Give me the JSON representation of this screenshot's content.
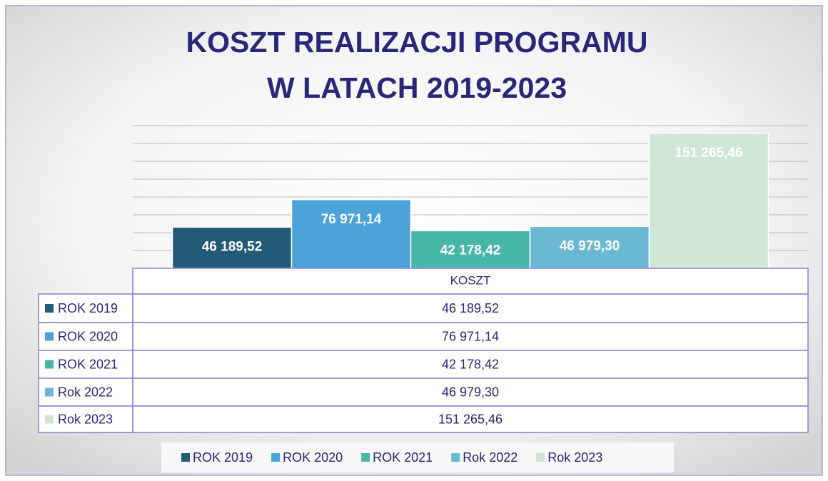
{
  "chart_data": {
    "type": "bar",
    "title": [
      "KOSZT REALIZACJI PROGRAMU",
      "W LATACH 2019-2023"
    ],
    "categories": [
      "KOSZT"
    ],
    "series": [
      {
        "name": "ROK 2019",
        "color": "#235a78",
        "values": [
          46189.52
        ],
        "value_labels": [
          "46 189,52"
        ]
      },
      {
        "name": "ROK 2020",
        "color": "#4ba3da",
        "values": [
          76971.14
        ],
        "value_labels": [
          "76 971,14"
        ]
      },
      {
        "name": "ROK 2021",
        "color": "#47b6a6",
        "values": [
          42178.42
        ],
        "value_labels": [
          "42 178,42"
        ]
      },
      {
        "name": "Rok 2022",
        "color": "#6ab8d2",
        "values": [
          46979.3
        ],
        "value_labels": [
          "46 979,30"
        ]
      },
      {
        "name": "Rok 2023",
        "color": "#cfe6d7",
        "values": [
          151265.46
        ],
        "value_labels": [
          "151 265,46"
        ]
      }
    ],
    "ylim": [
      0,
      160000
    ],
    "yticks": [
      0,
      20000,
      40000,
      60000,
      80000,
      100000,
      120000,
      140000,
      160000
    ],
    "grid": true,
    "data_table": true,
    "legend": "bottom"
  }
}
